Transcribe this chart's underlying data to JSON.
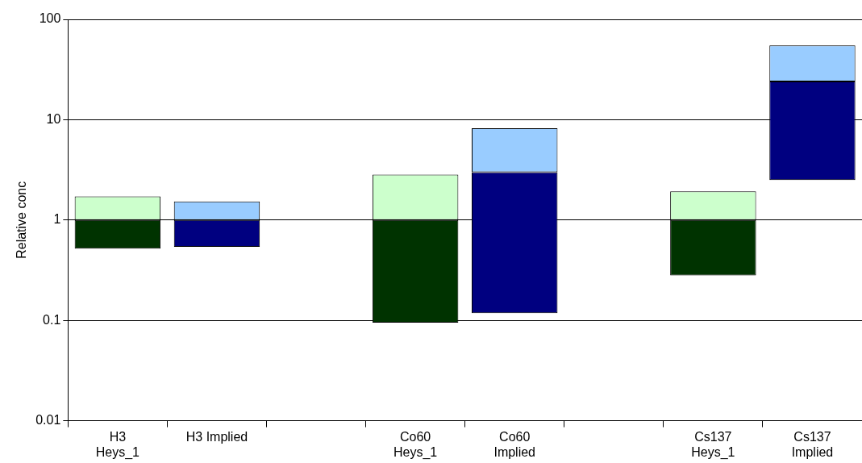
{
  "chart_data": {
    "type": "bar",
    "ylabel": "Relative conc",
    "log": "y",
    "grid": "y",
    "categories": [
      "H3\nHeys_1",
      "H3 Implied",
      null,
      "Co60\nHeys_1",
      "Co60\nImplied",
      null,
      "Cs137\nHeys_1",
      "Cs137\nImplied"
    ],
    "series": [
      {
        "colors": [
          "#003300",
          "#000080",
          null,
          "#003300",
          "#000080",
          null,
          "#003300",
          "#000080"
        ],
        "base": [
          0.52,
          0.54,
          null,
          0.095,
          0.118,
          null,
          0.28,
          2.5
        ],
        "values": [
          0.48,
          0.46,
          null,
          0.905,
          2.88,
          null,
          0.72,
          21.5
        ]
      },
      {
        "colors": [
          "#ccffcc",
          "#99ccff",
          null,
          "#ccffcc",
          "#99ccff",
          null,
          "#ccffcc",
          "#99ccff"
        ],
        "base": [
          1,
          1,
          null,
          1,
          3,
          null,
          1,
          24
        ],
        "values": [
          0.72,
          0.53,
          null,
          1.83,
          5.2,
          null,
          0.93,
          31
        ]
      }
    ],
    "ylim": [
      0.01,
      100
    ],
    "yticks": [
      0.01,
      0.1,
      1,
      10,
      100
    ]
  }
}
